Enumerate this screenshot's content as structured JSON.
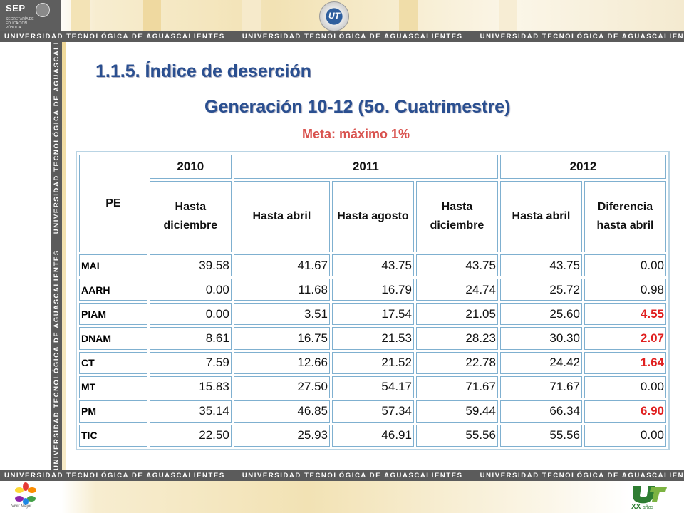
{
  "header": {
    "sep_label": "SEP",
    "sep_sub": "SECRETARÍA DE EDUCACIÓN PÚBLICA",
    "ut_logo_text": "UT",
    "band_text": "UNIVERSIDAD TECNOLÓGICA DE AGUASCALIENTES"
  },
  "footer": {
    "vivir_label": "Vivir Mejor",
    "ut_xx_text": "XX",
    "ut_xx_sub": "años"
  },
  "titles": {
    "section": "1.1.5.  Índice de deserción",
    "generation": "Generación 10-12 (5o. Cuatrimestre)",
    "goal": "Meta: máximo 1%"
  },
  "table": {
    "pe_header": "PE",
    "years": [
      "2010",
      "2011",
      "2012"
    ],
    "columns": [
      "Hasta diciembre",
      "Hasta abril",
      "Hasta agosto",
      "Hasta diciembre",
      "Hasta abril",
      "Diferencia hasta abril"
    ],
    "rows": [
      {
        "pe": "MAI",
        "values": [
          "39.58",
          "41.67",
          "43.75",
          "43.75",
          "43.75",
          "0.00"
        ],
        "highlight": false
      },
      {
        "pe": "AARH",
        "values": [
          "0.00",
          "11.68",
          "16.79",
          "24.74",
          "25.72",
          "0.98"
        ],
        "highlight": false
      },
      {
        "pe": "PIAM",
        "values": [
          "0.00",
          "3.51",
          "17.54",
          "21.05",
          "25.60",
          "4.55"
        ],
        "highlight": true
      },
      {
        "pe": "DNAM",
        "values": [
          "8.61",
          "16.75",
          "21.53",
          "28.23",
          "30.30",
          "2.07"
        ],
        "highlight": true
      },
      {
        "pe": "CT",
        "values": [
          "7.59",
          "12.66",
          "21.52",
          "22.78",
          "24.42",
          "1.64"
        ],
        "highlight": true
      },
      {
        "pe": "MT",
        "values": [
          "15.83",
          "27.50",
          "54.17",
          "71.67",
          "71.67",
          "0.00"
        ],
        "highlight": false
      },
      {
        "pe": "PM",
        "values": [
          "35.14",
          "46.85",
          "57.34",
          "59.44",
          "66.34",
          "6.90"
        ],
        "highlight": true
      },
      {
        "pe": "TIC",
        "values": [
          "22.50",
          "25.93",
          "46.91",
          "55.56",
          "55.56",
          "0.00"
        ],
        "highlight": false
      }
    ]
  },
  "colors": {
    "title_blue": "#2a4f90",
    "goal_red": "#d9534f",
    "highlight_red": "#e02020",
    "band_gray": "#5b5b5b",
    "cell_border": "#7fb0d0"
  }
}
